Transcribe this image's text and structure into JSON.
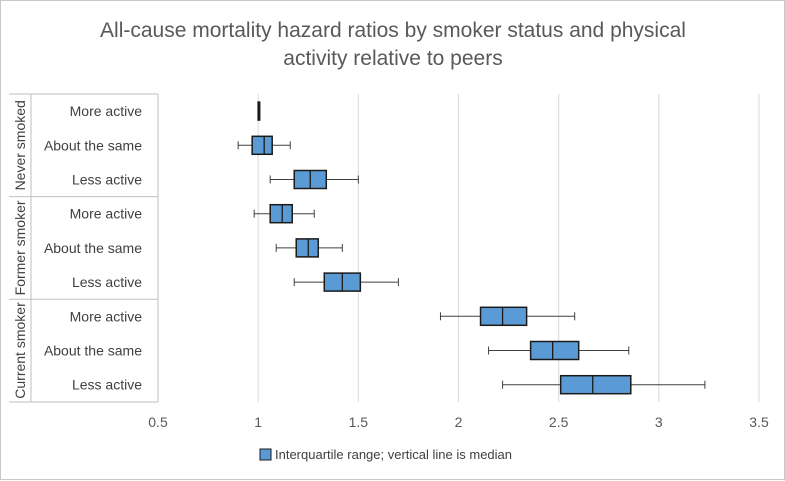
{
  "chart_data": {
    "type": "box",
    "title_lines": [
      "All-cause mortality hazard ratios by smoker status and physical",
      "activity relative to peers"
    ],
    "xlim": [
      0.5,
      3.5
    ],
    "xticks": [
      "0.5",
      "1",
      "1.5",
      "2",
      "2.5",
      "3",
      "3.5"
    ],
    "xtick_values": [
      0.5,
      1,
      1.5,
      2,
      2.5,
      3,
      3.5
    ],
    "grid": "vertical",
    "legend": {
      "label": "Interquartile range; vertical line is median",
      "placement": "bottom"
    },
    "box_color": "#5b9bd5",
    "groups": [
      {
        "name": "Never smoked",
        "rows": [
          {
            "label": "More active",
            "whisker_low": 1.0,
            "q1": 1.0,
            "median": 1.0,
            "q3": 1.0,
            "whisker_high": 1.0
          },
          {
            "label": "About the same",
            "whisker_low": 0.9,
            "q1": 0.97,
            "median": 1.03,
            "q3": 1.07,
            "whisker_high": 1.16
          },
          {
            "label": "Less active",
            "whisker_low": 1.06,
            "q1": 1.18,
            "median": 1.26,
            "q3": 1.34,
            "whisker_high": 1.5
          }
        ]
      },
      {
        "name": "Former smoker",
        "rows": [
          {
            "label": "More active",
            "whisker_low": 0.98,
            "q1": 1.06,
            "median": 1.12,
            "q3": 1.17,
            "whisker_high": 1.28
          },
          {
            "label": "About the same",
            "whisker_low": 1.09,
            "q1": 1.19,
            "median": 1.25,
            "q3": 1.3,
            "whisker_high": 1.42
          },
          {
            "label": "Less active",
            "whisker_low": 1.18,
            "q1": 1.33,
            "median": 1.42,
            "q3": 1.51,
            "whisker_high": 1.7
          }
        ]
      },
      {
        "name": "Current smoker",
        "rows": [
          {
            "label": "More active",
            "whisker_low": 1.91,
            "q1": 2.11,
            "median": 2.22,
            "q3": 2.34,
            "whisker_high": 2.58
          },
          {
            "label": "About the same",
            "whisker_low": 2.15,
            "q1": 2.36,
            "median": 2.47,
            "q3": 2.6,
            "whisker_high": 2.85
          },
          {
            "label": "Less active",
            "whisker_low": 2.22,
            "q1": 2.51,
            "median": 2.67,
            "q3": 2.86,
            "whisker_high": 3.23
          }
        ]
      }
    ]
  }
}
